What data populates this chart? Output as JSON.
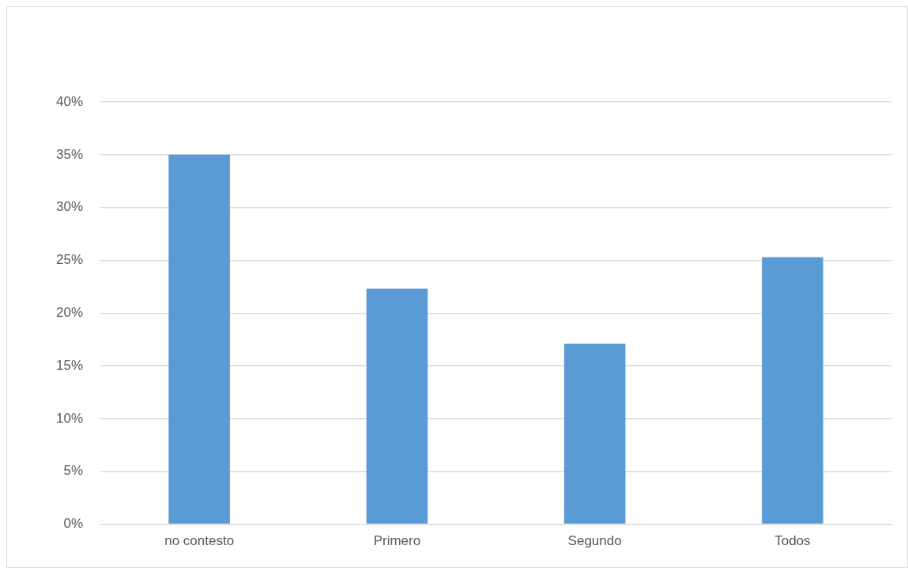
{
  "chart_data": {
    "type": "bar",
    "categories": [
      "no contesto",
      "Primero",
      "Segundo",
      "Todos"
    ],
    "values": [
      35,
      22.3,
      17.1,
      25.3
    ],
    "color": "#5b9bd5",
    "ylim": [
      0,
      40
    ],
    "yticks": [
      {
        "value": 0,
        "label": "0%"
      },
      {
        "value": 5,
        "label": "5%"
      },
      {
        "value": 10,
        "label": "10%"
      },
      {
        "value": 15,
        "label": "15%"
      },
      {
        "value": 20,
        "label": "20%"
      },
      {
        "value": 25,
        "label": "25%"
      },
      {
        "value": 30,
        "label": "30%"
      },
      {
        "value": 35,
        "label": "35%"
      },
      {
        "value": 40,
        "label": "40%"
      }
    ],
    "grid": "y",
    "legend": false
  }
}
